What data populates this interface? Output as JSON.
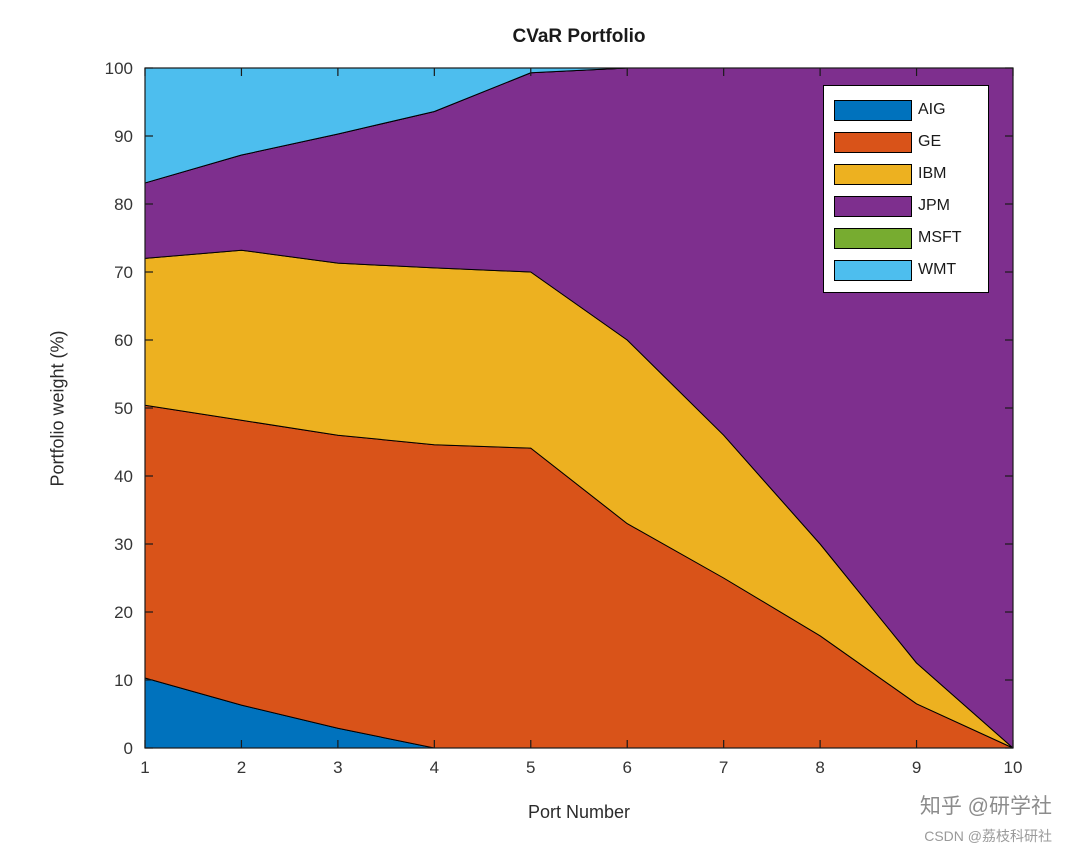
{
  "title": "CVaR Portfolio",
  "axes": {
    "xlabel": "Port Number",
    "ylabel": "Portfolio weight (%)"
  },
  "watermarks": {
    "zhihu": "知乎 @研学社",
    "csdn": "CSDN @荔枝科研社"
  },
  "chart_data": {
    "type": "area",
    "stacked": true,
    "title": "CVaR Portfolio",
    "xlabel": "Port Number",
    "ylabel": "Portfolio weight (%)",
    "x": [
      1,
      2,
      3,
      4,
      5,
      6,
      7,
      8,
      9,
      10
    ],
    "xlim": [
      1,
      10
    ],
    "ylim": [
      0,
      100
    ],
    "x_ticks": [
      1,
      2,
      3,
      4,
      5,
      6,
      7,
      8,
      9,
      10
    ],
    "y_ticks": [
      0,
      10,
      20,
      30,
      40,
      50,
      60,
      70,
      80,
      90,
      100
    ],
    "grid": false,
    "legend_position": "top-right",
    "edge_color": "#000000",
    "series": [
      {
        "name": "AIG",
        "color": "#0072BD",
        "values": [
          10.3,
          6.3,
          2.9,
          0,
          0,
          0,
          0,
          0,
          0,
          0
        ]
      },
      {
        "name": "GE",
        "color": "#D95319",
        "values": [
          40.1,
          41.9,
          43.1,
          44.6,
          44.1,
          33,
          25,
          16.5,
          6.5,
          0
        ]
      },
      {
        "name": "IBM",
        "color": "#EDB120",
        "values": [
          21.6,
          25.0,
          25.3,
          26.0,
          25.9,
          27,
          21,
          13.5,
          6.0,
          0
        ]
      },
      {
        "name": "JPM",
        "color": "#7E2F8E",
        "values": [
          11.1,
          14.0,
          19.0,
          23.0,
          29.3,
          40,
          54,
          70.0,
          87.5,
          100
        ]
      },
      {
        "name": "MSFT",
        "color": "#77AC30",
        "values": [
          0,
          0,
          0,
          0,
          0,
          0,
          0,
          0,
          0,
          0
        ]
      },
      {
        "name": "WMT",
        "color": "#4DBEEE",
        "values": [
          16.9,
          12.8,
          9.7,
          6.4,
          0.7,
          0,
          0,
          0,
          0,
          0
        ]
      }
    ]
  }
}
